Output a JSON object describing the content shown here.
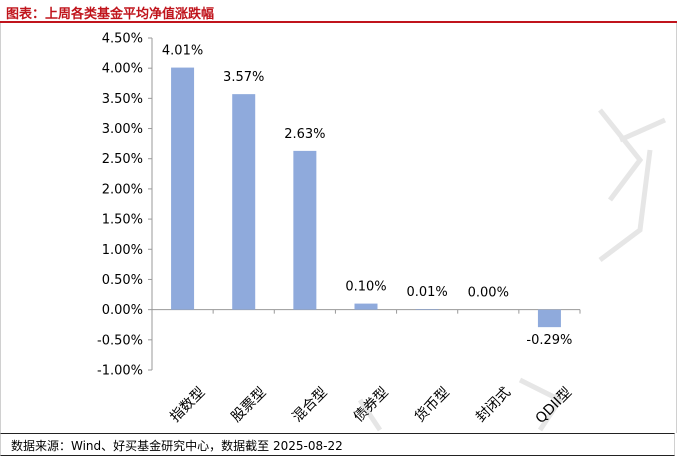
{
  "title": "图表：上周各类基金平均净值涨跌幅",
  "source": "数据来源：Wind、好买基金研究中心，数据截至 2025-08-22",
  "chart_data": {
    "type": "bar",
    "categories": [
      "指数型",
      "股票型",
      "混合型",
      "债券型",
      "货币型",
      "封闭式",
      "QDII型"
    ],
    "values": [
      4.01,
      3.57,
      2.63,
      0.1,
      0.01,
      0.0,
      -0.29
    ],
    "data_labels": [
      "4.01%",
      "3.57%",
      "2.63%",
      "0.10%",
      "0.01%",
      "0.00%",
      "-0.29%"
    ],
    "ylim": [
      -1.0,
      4.5
    ],
    "yticks": [
      4.5,
      4.0,
      3.5,
      3.0,
      2.5,
      2.0,
      1.5,
      1.0,
      0.5,
      0.0,
      -0.5,
      -1.0
    ],
    "ytick_labels": [
      "4.50%",
      "4.00%",
      "3.50%",
      "3.00%",
      "2.50%",
      "2.00%",
      "1.50%",
      "1.00%",
      "0.50%",
      "0.00%",
      "-0.50%",
      "-1.00%"
    ],
    "bar_color": "#8faadc",
    "grid": false,
    "legend": false
  }
}
